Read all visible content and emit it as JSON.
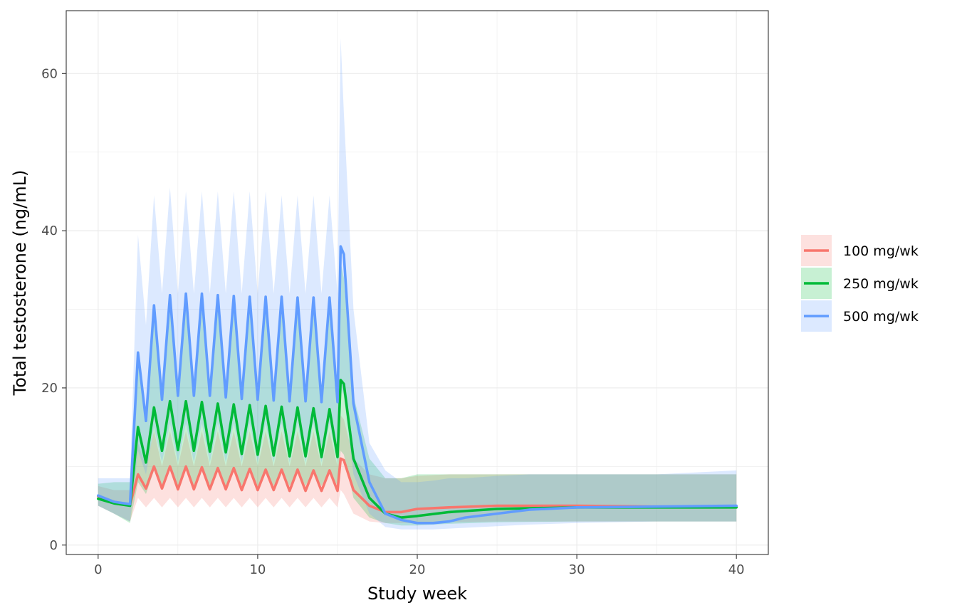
{
  "chart_data": {
    "type": "line",
    "title": "",
    "xlabel": "Study week",
    "ylabel": "Total testosterone (ng/mL)",
    "xlim": [
      -2,
      42
    ],
    "ylim": [
      -1.2,
      68
    ],
    "xticks": [
      0,
      10,
      20,
      30,
      40
    ],
    "yticks": [
      0,
      20,
      40,
      60
    ],
    "grid": true,
    "legend_position": "right",
    "bands": "shaded ribbons show the interval range around each median line",
    "series": [
      {
        "name": "100 mg/wk",
        "color": "#F8766D",
        "x": [
          0,
          1,
          2,
          2.5,
          3,
          3.5,
          4,
          4.5,
          5,
          5.5,
          6,
          6.5,
          7,
          7.5,
          8,
          8.5,
          9,
          9.5,
          10,
          10.5,
          11,
          11.5,
          12,
          12.5,
          13,
          13.5,
          14,
          14.5,
          15,
          15.2,
          15.4,
          16,
          17,
          18,
          19,
          20,
          22,
          25,
          30,
          35,
          40
        ],
        "median": [
          6.2,
          5.5,
          5.1,
          9.0,
          7.2,
          10.0,
          7.2,
          10.0,
          7.1,
          10.0,
          7.1,
          9.9,
          7.1,
          9.8,
          7.1,
          9.8,
          7.0,
          9.7,
          7.0,
          9.6,
          7.0,
          9.6,
          6.9,
          9.6,
          6.9,
          9.5,
          6.9,
          9.5,
          6.9,
          11.0,
          10.8,
          7.0,
          5.0,
          4.2,
          4.2,
          4.6,
          4.8,
          5.0,
          5.0,
          4.9,
          4.9
        ],
        "lower": [
          5.0,
          4.0,
          3.0,
          6.0,
          4.8,
          6.0,
          4.8,
          6.0,
          4.8,
          6.0,
          4.8,
          6.0,
          4.8,
          6.0,
          4.8,
          6.0,
          4.8,
          6.0,
          4.8,
          6.0,
          4.8,
          6.0,
          4.8,
          6.0,
          4.8,
          6.0,
          4.8,
          6.0,
          4.8,
          7.0,
          6.5,
          4.0,
          3.0,
          2.8,
          2.8,
          2.8,
          2.9,
          3.0,
          3.0,
          3.0,
          3.0
        ],
        "upper": [
          7.5,
          7.0,
          7.0,
          13.0,
          10.0,
          14.5,
          10.0,
          14.5,
          10.0,
          14.5,
          10.0,
          14.5,
          10.0,
          14.5,
          10.0,
          14.5,
          10.0,
          14.5,
          10.0,
          14.5,
          10.0,
          14.5,
          10.0,
          14.5,
          10.0,
          14.5,
          10.0,
          14.5,
          10.0,
          16.5,
          16.0,
          11.0,
          9.0,
          8.5,
          8.5,
          8.8,
          9.0,
          9.0,
          9.0,
          9.0,
          9.0
        ]
      },
      {
        "name": "250 mg/wk",
        "color": "#00BA38",
        "x": [
          0,
          1,
          2,
          2.5,
          3,
          3.5,
          4,
          4.5,
          5,
          5.5,
          6,
          6.5,
          7,
          7.5,
          8,
          8.5,
          9,
          9.5,
          10,
          10.5,
          11,
          11.5,
          12,
          12.5,
          13,
          13.5,
          14,
          14.5,
          15,
          15.2,
          15.4,
          16,
          17,
          18,
          19,
          20,
          22,
          25,
          30,
          35,
          40
        ],
        "median": [
          5.9,
          5.3,
          5.0,
          15.0,
          10.5,
          17.5,
          12.0,
          18.3,
          12.1,
          18.3,
          12.0,
          18.2,
          11.9,
          18.0,
          11.8,
          17.9,
          11.6,
          17.8,
          11.5,
          17.7,
          11.4,
          17.6,
          11.3,
          17.5,
          11.3,
          17.4,
          11.2,
          17.3,
          11.2,
          21.0,
          20.5,
          11.0,
          6.0,
          4.0,
          3.5,
          3.7,
          4.2,
          4.6,
          4.8,
          4.8,
          4.8
        ],
        "lower": [
          5.0,
          4.0,
          2.8,
          8.0,
          6.5,
          9.5,
          7.5,
          9.5,
          7.5,
          9.5,
          7.5,
          9.5,
          7.5,
          9.5,
          7.5,
          9.5,
          7.5,
          9.5,
          7.5,
          9.5,
          7.5,
          9.5,
          7.5,
          9.5,
          7.5,
          9.5,
          7.5,
          9.5,
          7.5,
          12.0,
          11.5,
          6.0,
          3.5,
          2.8,
          2.5,
          2.5,
          2.7,
          2.9,
          3.0,
          3.0,
          3.0
        ],
        "upper": [
          7.8,
          8.0,
          8.0,
          24.0,
          17.0,
          29.0,
          19.0,
          30.0,
          19.0,
          30.0,
          19.0,
          30.0,
          19.0,
          30.0,
          19.0,
          30.0,
          19.0,
          30.0,
          19.0,
          30.0,
          19.0,
          29.5,
          19.0,
          29.5,
          19.0,
          29.5,
          19.0,
          29.5,
          19.0,
          36.0,
          34.0,
          19.0,
          11.0,
          8.5,
          8.5,
          9.0,
          9.0,
          9.0,
          9.0,
          9.0,
          9.0
        ]
      },
      {
        "name": "500 mg/wk",
        "color": "#619CFF",
        "x": [
          0,
          1,
          2,
          2.5,
          3,
          3.5,
          4,
          4.5,
          5,
          5.5,
          6,
          6.5,
          7,
          7.5,
          8,
          8.5,
          9,
          9.5,
          10,
          10.5,
          11,
          11.5,
          12,
          12.5,
          13,
          13.5,
          14,
          14.5,
          15,
          15.2,
          15.4,
          16,
          17,
          18,
          19,
          20,
          21,
          22,
          23,
          25,
          27,
          30,
          35,
          40
        ],
        "median": [
          6.3,
          5.5,
          5.2,
          24.5,
          15.8,
          30.5,
          18.5,
          31.8,
          19.0,
          32.0,
          19.0,
          32.0,
          19.0,
          31.8,
          18.8,
          31.7,
          18.6,
          31.6,
          18.5,
          31.6,
          18.4,
          31.6,
          18.3,
          31.5,
          18.3,
          31.5,
          18.2,
          31.5,
          18.2,
          38.0,
          37.0,
          18.0,
          8.0,
          4.0,
          3.2,
          2.8,
          2.8,
          3.0,
          3.5,
          4.0,
          4.5,
          4.8,
          4.9,
          5.0
        ],
        "lower": [
          5.0,
          4.0,
          3.0,
          12.0,
          9.0,
          15.0,
          10.5,
          15.5,
          10.5,
          15.5,
          10.5,
          15.5,
          10.5,
          15.5,
          10.5,
          15.5,
          10.5,
          15.5,
          10.5,
          15.5,
          10.5,
          15.5,
          10.5,
          15.5,
          10.5,
          15.5,
          10.5,
          15.5,
          10.5,
          20.0,
          19.0,
          9.0,
          4.0,
          2.3,
          2.0,
          2.0,
          2.0,
          2.1,
          2.2,
          2.4,
          2.6,
          2.8,
          3.0,
          3.0
        ],
        "upper": [
          8.5,
          8.5,
          8.5,
          39.5,
          28.0,
          44.5,
          32.0,
          45.5,
          32.0,
          45.0,
          32.0,
          45.0,
          32.0,
          45.0,
          32.0,
          45.0,
          32.0,
          45.0,
          32.0,
          45.0,
          32.0,
          44.5,
          32.0,
          44.5,
          32.0,
          44.5,
          32.0,
          44.5,
          32.0,
          64.5,
          55.0,
          30.0,
          13.0,
          9.5,
          8.0,
          8.0,
          8.2,
          8.5,
          8.5,
          8.8,
          9.0,
          9.0,
          9.0,
          9.5
        ]
      }
    ]
  }
}
